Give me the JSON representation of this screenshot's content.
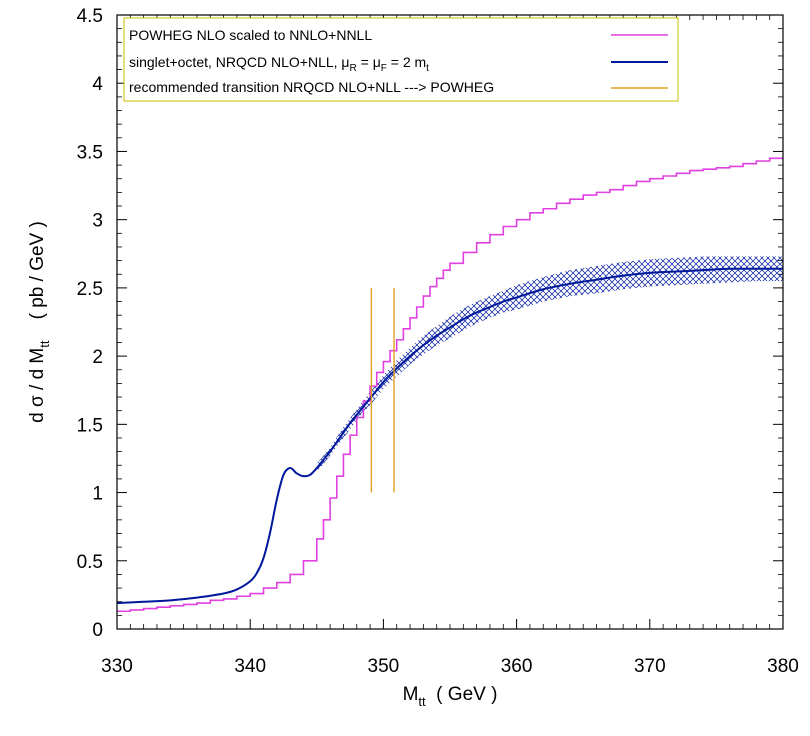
{
  "chart_data": {
    "type": "line",
    "xlabel_main": "M",
    "xlabel_sub": "tt",
    "xlabel_unit": "  ( GeV )",
    "ylabel_main": "d σ / d M",
    "ylabel_sub": "tt",
    "ylabel_unit": "    ( pb / GeV )",
    "xlim": [
      330,
      380
    ],
    "ylim": [
      0,
      4.5
    ],
    "x_ticks": [
      "330",
      "340",
      "350",
      "360",
      "370",
      "380"
    ],
    "y_ticks": [
      "0",
      "0.5",
      "1",
      "1.5",
      "2",
      "2.5",
      "3",
      "3.5",
      "4",
      "4.5"
    ],
    "grid": false,
    "legend_position": "top-left",
    "legend": {
      "powheg_label": "POWHEG NLO scaled to NNLO+NNLL",
      "nrqcd_label_main": "singlet+octet, NRQCD NLO+NLL, μ",
      "nrqcd_label_sub1": "R",
      "nrqcd_label_mid": " = μ",
      "nrqcd_label_sub2": "F",
      "nrqcd_label_end": " = 2 m",
      "nrqcd_label_sub3": "t",
      "transition_label": "recommended transition NRQCD NLO+NLL ---> POWHEG"
    },
    "colors": {
      "powheg": "#e040e0",
      "nrqcd": "#00189c",
      "transition": "#e0a020"
    },
    "series": [
      {
        "name": "POWHEG NLO scaled to NNLO+NNLL",
        "style": "step",
        "x": [
          330,
          331,
          332,
          333,
          334,
          335,
          336,
          337,
          338,
          339,
          340,
          341,
          342,
          343,
          344,
          345,
          345.5,
          346,
          346.5,
          347,
          347.5,
          348,
          348.5,
          349,
          349.5,
          350,
          350.5,
          351,
          351.5,
          352,
          352.5,
          353,
          353.5,
          354,
          354.5,
          355,
          356,
          357,
          358,
          359,
          360,
          361,
          362,
          363,
          364,
          365,
          366,
          367,
          368,
          369,
          370,
          371,
          372,
          373,
          374,
          375,
          376,
          377,
          378,
          379,
          380
        ],
        "y": [
          0.13,
          0.14,
          0.15,
          0.16,
          0.17,
          0.18,
          0.19,
          0.21,
          0.22,
          0.24,
          0.26,
          0.3,
          0.34,
          0.4,
          0.5,
          0.66,
          0.8,
          0.96,
          1.12,
          1.28,
          1.42,
          1.55,
          1.67,
          1.78,
          1.88,
          1.96,
          2.04,
          2.12,
          2.2,
          2.28,
          2.36,
          2.44,
          2.51,
          2.57,
          2.63,
          2.68,
          2.76,
          2.83,
          2.89,
          2.95,
          3.0,
          3.05,
          3.08,
          3.12,
          3.15,
          3.18,
          3.2,
          3.22,
          3.25,
          3.28,
          3.3,
          3.32,
          3.34,
          3.36,
          3.37,
          3.38,
          3.39,
          3.41,
          3.43,
          3.45,
          3.46
        ]
      },
      {
        "name": "singlet+octet, NRQCD NLO+NLL, μR = μF = 2 mt",
        "style": "line",
        "x": [
          330,
          332,
          334,
          336,
          338,
          339,
          340,
          340.5,
          341,
          341.5,
          342,
          342.5,
          343,
          343.5,
          344,
          344.5,
          345,
          345.5,
          346,
          346.5,
          347,
          347.5,
          348,
          349,
          350,
          351,
          352,
          353,
          354,
          355,
          356,
          357,
          358,
          359,
          360,
          362,
          364,
          366,
          368,
          370,
          372,
          374,
          376,
          378,
          380
        ],
        "y": [
          0.19,
          0.2,
          0.21,
          0.23,
          0.26,
          0.29,
          0.35,
          0.41,
          0.52,
          0.71,
          0.95,
          1.13,
          1.18,
          1.14,
          1.12,
          1.13,
          1.18,
          1.24,
          1.3,
          1.37,
          1.44,
          1.51,
          1.57,
          1.69,
          1.81,
          1.91,
          2.0,
          2.08,
          2.15,
          2.21,
          2.27,
          2.32,
          2.36,
          2.4,
          2.43,
          2.49,
          2.53,
          2.56,
          2.59,
          2.61,
          2.62,
          2.63,
          2.64,
          2.64,
          2.64
        ]
      }
    ],
    "uncertainty_band": {
      "x": [
        345,
        346,
        347,
        348,
        349,
        350,
        351,
        352,
        353,
        354,
        355,
        356,
        357,
        358,
        359,
        360,
        362,
        364,
        366,
        368,
        370,
        372,
        374,
        376,
        378,
        380
      ],
      "upper": [
        1.21,
        1.33,
        1.48,
        1.61,
        1.74,
        1.86,
        1.97,
        2.06,
        2.15,
        2.22,
        2.29,
        2.35,
        2.4,
        2.44,
        2.48,
        2.52,
        2.58,
        2.63,
        2.66,
        2.69,
        2.71,
        2.72,
        2.73,
        2.73,
        2.73,
        2.73
      ],
      "lower": [
        1.15,
        1.27,
        1.4,
        1.53,
        1.64,
        1.76,
        1.85,
        1.94,
        2.01,
        2.08,
        2.13,
        2.19,
        2.24,
        2.28,
        2.32,
        2.34,
        2.4,
        2.44,
        2.46,
        2.49,
        2.51,
        2.52,
        2.53,
        2.54,
        2.55,
        2.55
      ]
    },
    "transition_lines": [
      {
        "x": 349.1,
        "y_from": 1.0,
        "y_to": 2.5
      },
      {
        "x": 350.8,
        "y_from": 1.0,
        "y_to": 2.5
      }
    ]
  }
}
